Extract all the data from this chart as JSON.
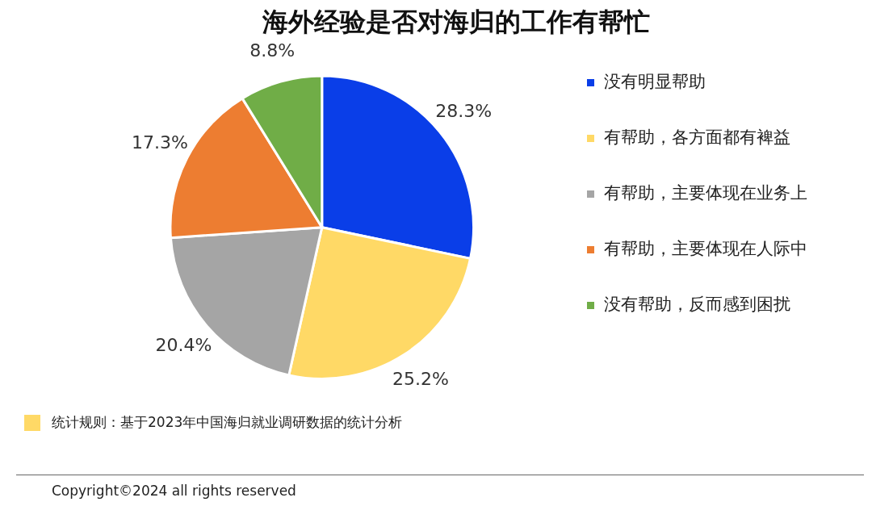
{
  "chart_data": {
    "type": "pie",
    "title": "海外经验是否对海归的工作有帮忙",
    "categories": [
      "没有明显帮助",
      "有帮助，各方面都有裨益",
      "有帮助，主要体现在业务上",
      "有帮助，主要体现在人际中",
      "没有帮助，反而感到困扰"
    ],
    "values": [
      28.3,
      25.2,
      20.4,
      17.3,
      8.8
    ],
    "value_labels": [
      "28.3%",
      "25.2%",
      "20.4%",
      "17.3%",
      "8.8%"
    ],
    "colors": [
      "#0a3ee8",
      "#ffd966",
      "#a5a5a5",
      "#ed7d31",
      "#70ad47"
    ],
    "legend": "right",
    "annotations": [
      "统计规则：基于2023年中国海归就业调研数据的统计分析",
      "Copyright©2024 all rights reserved"
    ]
  }
}
